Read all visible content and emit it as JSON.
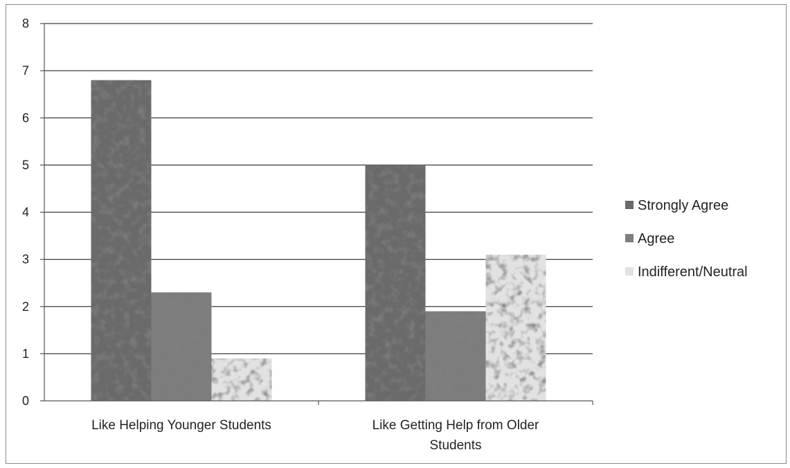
{
  "chart_data": {
    "type": "bar",
    "categories": [
      [
        "Like Helping Younger Students"
      ],
      [
        "Like Getting Help from Older",
        "Students"
      ]
    ],
    "series": [
      {
        "name": "Strongly Agree",
        "values": [
          6.8,
          5.0
        ],
        "color": "#6a6a6a"
      },
      {
        "name": "Agree",
        "values": [
          2.3,
          1.9
        ],
        "color": "#7e7e7e"
      },
      {
        "name": "Indifferent/Neutral",
        "values": [
          0.9,
          3.1
        ],
        "color": "#e2e2e2"
      }
    ],
    "ylim": [
      0,
      8
    ],
    "yticks": [
      "0",
      "1",
      "2",
      "3",
      "4",
      "5",
      "6",
      "7",
      "8"
    ],
    "grid": true,
    "legend_position": "right"
  }
}
